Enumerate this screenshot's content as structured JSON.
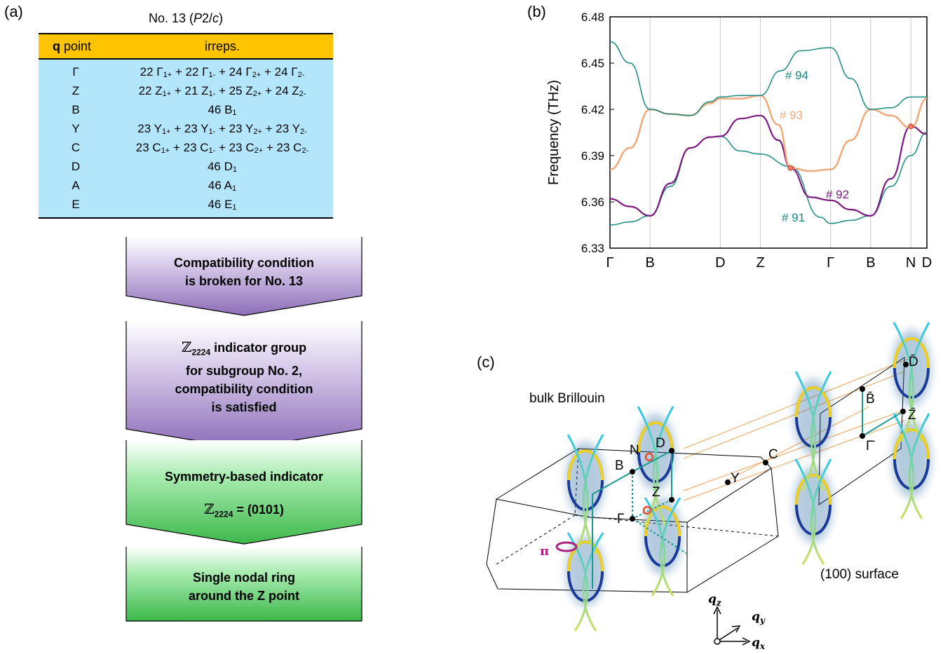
{
  "panels": {
    "a": "(a)",
    "b": "(b)",
    "c": "(c)"
  },
  "table": {
    "title": "No. 13 (P2/c)",
    "title_pre": "No. 13 (",
    "title_italic": "P",
    "title_mid": "2/",
    "title_italic2": "c",
    "title_post": ")",
    "col1_bold": "q",
    "col1_rest": " point",
    "col2": "irreps.",
    "rows": [
      {
        "q": "Γ",
        "irreps": [
          [
            "22 Γ",
            "1+"
          ],
          [
            " + 22 Γ",
            "1-"
          ],
          [
            " + 24 Γ",
            "2+"
          ],
          [
            " + 24 Γ",
            "2-"
          ]
        ]
      },
      {
        "q": "Z",
        "irreps": [
          [
            "22 Z",
            "1+"
          ],
          [
            " + 21 Z",
            "1-"
          ],
          [
            " + 25 Z",
            "2+"
          ],
          [
            " + 24 Z",
            "2-"
          ]
        ]
      },
      {
        "q": "B",
        "irreps": [
          [
            "46 B",
            "1"
          ]
        ]
      },
      {
        "q": "Y",
        "irreps": [
          [
            "23 Y",
            "1+"
          ],
          [
            " + 23 Y",
            "1-"
          ],
          [
            " + 23 Y",
            "2+"
          ],
          [
            " + 23 Y",
            "2-"
          ]
        ]
      },
      {
        "q": "C",
        "irreps": [
          [
            "23 C",
            "1+"
          ],
          [
            " + 23 C",
            "1-"
          ],
          [
            " + 23 C",
            "2+"
          ],
          [
            " + 23 C",
            "2-"
          ]
        ]
      },
      {
        "q": "D",
        "irreps": [
          [
            "46 D",
            "1"
          ]
        ]
      },
      {
        "q": "A",
        "irreps": [
          [
            "46 A",
            "1"
          ]
        ]
      },
      {
        "q": "E",
        "irreps": [
          [
            "46 E",
            "1"
          ]
        ]
      }
    ]
  },
  "flow": {
    "step1": [
      "Compatibility condition",
      "is broken for No. 13"
    ],
    "step2_z": "ℤ",
    "step2_sub": "2224",
    "step2_line1": " indicator group",
    "step2": [
      "for subgroup No. 2,",
      "compatibility condition",
      "is satisfied"
    ],
    "step3_line1": "Symmetry-based indicator",
    "step3_z": "ℤ",
    "step3_sub": "2224",
    "step3_value": " = (0101)",
    "step4": [
      "Single nodal ring",
      "around the Z point"
    ]
  },
  "chart_data": {
    "type": "line",
    "ylabel": "Frequency (THz)",
    "ylim": [
      6.33,
      6.48
    ],
    "yticks": [
      "6.33",
      "6.36",
      "6.39",
      "6.42",
      "6.45",
      "6.48"
    ],
    "xticks": [
      "Γ",
      "B",
      "D",
      "Z",
      "Γ",
      "B",
      "N",
      "D"
    ],
    "x_positions": [
      0,
      1,
      2.75,
      3.75,
      5.5,
      6.5,
      7.5,
      7.9
    ],
    "series": [
      {
        "name": "# 91",
        "color": "#1a8a80",
        "x": [
          0,
          0.5,
          1,
          1.5,
          2,
          2.5,
          2.75,
          3.25,
          3.75,
          4.5,
          5.25,
          5.5,
          6,
          6.5,
          7,
          7.5,
          7.9
        ],
        "y": [
          6.345,
          6.347,
          6.351,
          6.37,
          6.395,
          6.402,
          6.4025,
          6.393,
          6.391,
          6.383,
          6.35,
          6.346,
          6.348,
          6.351,
          6.37,
          6.39,
          6.405
        ]
      },
      {
        "name": "# 92",
        "color": "#7a1a80",
        "x": [
          0,
          0.5,
          1,
          1.5,
          2,
          2.5,
          2.75,
          3.25,
          3.75,
          4.2,
          4.5,
          5,
          5.5,
          6,
          6.5,
          7,
          7.5,
          7.9
        ],
        "y": [
          6.362,
          6.357,
          6.351,
          6.372,
          6.395,
          6.402,
          6.4025,
          6.414,
          6.416,
          6.4,
          6.382,
          6.363,
          6.361,
          6.355,
          6.351,
          6.375,
          6.409,
          6.404
        ]
      },
      {
        "name": "# 93",
        "color": "#f0a97a",
        "x": [
          0,
          0.5,
          1,
          1.5,
          2,
          2.5,
          2.75,
          3.25,
          3.75,
          4.2,
          4.5,
          5,
          5.5,
          6,
          6.5,
          7,
          7.5,
          7.9
        ],
        "y": [
          6.381,
          6.395,
          6.42,
          6.417,
          6.416,
          6.424,
          6.427,
          6.427,
          6.429,
          6.41,
          6.382,
          6.38,
          6.381,
          6.4,
          6.42,
          6.416,
          6.408,
          6.427
        ]
      },
      {
        "name": "# 94",
        "color": "#1a8a80",
        "x": [
          0,
          0.5,
          1,
          1.5,
          2,
          2.5,
          2.75,
          3.25,
          3.75,
          4.25,
          4.75,
          5.5,
          6,
          6.5,
          7,
          7.5,
          7.9
        ],
        "y": [
          6.464,
          6.45,
          6.42,
          6.417,
          6.416,
          6.425,
          6.428,
          6.429,
          6.429,
          6.445,
          6.458,
          6.46,
          6.44,
          6.42,
          6.421,
          6.428,
          6.428
        ]
      }
    ],
    "crossings": [
      {
        "x": 4.5,
        "y": 6.382
      },
      {
        "x": 7.5,
        "y": 6.409
      }
    ]
  },
  "bz": {
    "title": "bulk Brillouin",
    "surface": "(100) surface",
    "points": [
      "N",
      "D",
      "B",
      "Z",
      "Γ",
      "Y",
      "C"
    ],
    "surface_points": [
      "D̄",
      "B̄",
      "Z̄",
      "Γ̄"
    ],
    "pi": "π",
    "axes": [
      "q",
      "z",
      "q",
      "y",
      "q",
      "x"
    ]
  },
  "colors": {
    "gold": "#ffc400",
    "table_body": "#b3e5fb",
    "purple_box": "#a088c8",
    "green_box": "#4fcf5a"
  }
}
